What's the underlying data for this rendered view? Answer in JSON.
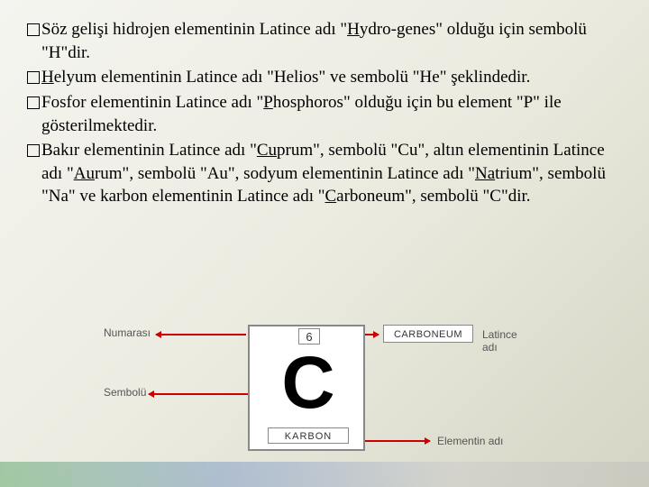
{
  "para1a": "Söz gelişi hidrojen elementinin Latince adı \"",
  "para1u": "H",
  "para1b": "ydro-genes\" olduğu için sembolü \"H\"dir.",
  "para2a": "",
  "para2u": "H",
  "para2b": "elyum elementinin Latince adı \"Helios\" ve sembolü \"He\" şeklindedir.",
  "para3a": "Fosfor elementinin Latince adı \"",
  "para3u": "P",
  "para3b": "hosphoros\" olduğu için bu element \"P\" ile gösterilmektedir.",
  "para4a": "Bakır elementinin Latince adı \"",
  "para4u1": "Cu",
  "para4b": "prum\", sembolü \"Cu\", altın elementinin Latince adı \"",
  "para4u2": "Au",
  "para4c": "rum\", sembolü \"Au\", sodyum elementinin Latince adı \"",
  "para4u3": "Na",
  "para4d": "trium\", sembolü \"Na\" ve karbon elementinin Latince adı \"",
  "para4u4": "C",
  "para4e": "arboneum\", sembolü \"C\"dir.",
  "diagram": {
    "atomic_number": "6",
    "symbol": "C",
    "name": "KARBON",
    "latin": "CARBONEUM",
    "label_numarasi": "Numarası",
    "label_sembolu": "Sembolü",
    "label_latince": "Latince adı",
    "label_elementin": "Elementin adı"
  }
}
